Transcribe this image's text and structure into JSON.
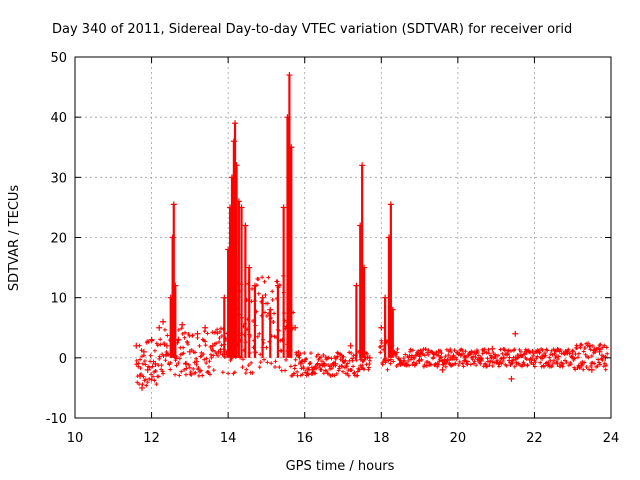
{
  "chart_data": {
    "type": "scatter",
    "title": "Day 340 of 2011, Sidereal Day-to-day VTEC variation (SDTVAR) for receiver orid",
    "xlabel": "GPS time / hours",
    "ylabel": "SDTVAR / TECUs",
    "xlim": [
      10,
      24
    ],
    "ylim": [
      -10,
      50
    ],
    "xticks": [
      10,
      12,
      14,
      16,
      18,
      20,
      22,
      24
    ],
    "yticks": [
      -10,
      0,
      10,
      20,
      30,
      40,
      50
    ],
    "xtick_labels": [
      "10",
      "12",
      "14",
      "16",
      "18",
      "20",
      "22",
      "24"
    ],
    "ytick_labels": [
      "-10",
      "0",
      "10",
      "20",
      "30",
      "40",
      "50"
    ],
    "grid": true,
    "marker": "+",
    "color": "#ff0000",
    "series": [
      {
        "name": "SDTVAR",
        "points": [
          [
            11.6,
            2
          ],
          [
            11.7,
            -3
          ],
          [
            11.75,
            -5
          ],
          [
            11.8,
            1
          ],
          [
            11.9,
            -2
          ],
          [
            12.0,
            3
          ],
          [
            12.1,
            -1
          ],
          [
            12.2,
            5
          ],
          [
            12.3,
            6
          ],
          [
            12.4,
            2
          ],
          [
            12.5,
            10
          ],
          [
            12.55,
            20
          ],
          [
            12.58,
            25.5
          ],
          [
            12.62,
            12
          ],
          [
            12.7,
            3
          ],
          [
            12.8,
            5.5
          ],
          [
            12.9,
            -1
          ],
          [
            13.0,
            1
          ],
          [
            13.2,
            4
          ],
          [
            13.4,
            5
          ],
          [
            13.6,
            2
          ],
          [
            13.8,
            1
          ],
          [
            13.9,
            10
          ],
          [
            14.0,
            18
          ],
          [
            14.05,
            25
          ],
          [
            14.1,
            30
          ],
          [
            14.15,
            36
          ],
          [
            14.18,
            39
          ],
          [
            14.22,
            32
          ],
          [
            14.28,
            26
          ],
          [
            14.35,
            25
          ],
          [
            14.45,
            22
          ],
          [
            14.55,
            15
          ],
          [
            14.7,
            12
          ],
          [
            14.9,
            10
          ],
          [
            15.1,
            8
          ],
          [
            15.3,
            12
          ],
          [
            15.45,
            25
          ],
          [
            15.55,
            40
          ],
          [
            15.6,
            47
          ],
          [
            15.65,
            35
          ],
          [
            15.75,
            5
          ],
          [
            15.9,
            -1
          ],
          [
            16.2,
            -2
          ],
          [
            16.5,
            -1
          ],
          [
            16.8,
            -1
          ],
          [
            17.0,
            -0.5
          ],
          [
            17.2,
            2
          ],
          [
            17.35,
            12
          ],
          [
            17.45,
            22
          ],
          [
            17.5,
            32
          ],
          [
            17.55,
            15
          ],
          [
            17.7,
            0
          ],
          [
            18.0,
            5
          ],
          [
            18.1,
            10
          ],
          [
            18.2,
            20
          ],
          [
            18.25,
            25.5
          ],
          [
            18.3,
            8
          ],
          [
            18.5,
            -1
          ],
          [
            19.0,
            -0.5
          ],
          [
            19.5,
            1
          ],
          [
            19.6,
            -2
          ],
          [
            19.8,
            0
          ],
          [
            20.2,
            0
          ],
          [
            20.6,
            -0.5
          ],
          [
            20.9,
            1.5
          ],
          [
            21.2,
            0
          ],
          [
            21.4,
            -3.5
          ],
          [
            21.5,
            4
          ],
          [
            21.8,
            1
          ],
          [
            22.2,
            0
          ],
          [
            22.6,
            -1
          ],
          [
            23.0,
            1
          ],
          [
            23.2,
            2
          ],
          [
            23.5,
            -2
          ],
          [
            23.7,
            1
          ],
          [
            23.85,
            0
          ]
        ]
      }
    ]
  }
}
